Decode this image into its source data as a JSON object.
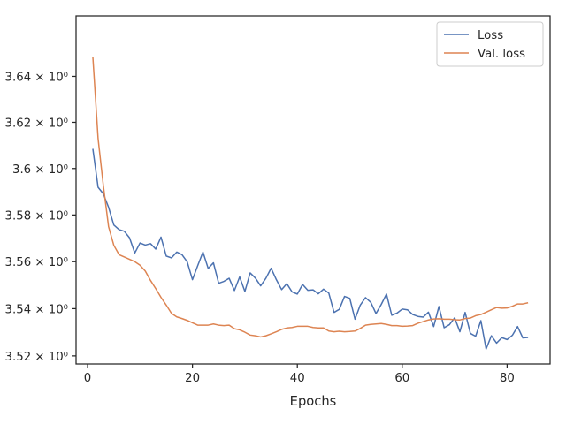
{
  "chart_data": {
    "type": "line",
    "title": "",
    "xlabel": "Epochs",
    "ylabel": "",
    "xlim": [
      -2.2,
      88.2
    ],
    "ylim": [
      3.5166,
      3.6665
    ],
    "x_ticks": [
      0,
      20,
      40,
      60,
      80
    ],
    "x_tick_labels": [
      "0",
      "20",
      "40",
      "60",
      "80"
    ],
    "y_ticks": [
      3.52,
      3.54,
      3.56,
      3.58,
      3.6,
      3.62,
      3.64
    ],
    "y_tick_labels": [
      "3.52 × 10⁰",
      "3.54 × 10⁰",
      "3.56 × 10⁰",
      "3.58 × 10⁰",
      "3.6 × 10⁰",
      "3.62 × 10⁰",
      "3.64 × 10⁰"
    ],
    "y_scale": "log",
    "grid": false,
    "legend_position": "top-right",
    "series": [
      {
        "name": "Loss",
        "color": "#4c72b0",
        "x": [
          1,
          2,
          3,
          4,
          5,
          6,
          7,
          8,
          9,
          10,
          11,
          12,
          13,
          14,
          15,
          16,
          17,
          18,
          19,
          20,
          21,
          22,
          23,
          24,
          25,
          26,
          27,
          28,
          29,
          30,
          31,
          32,
          33,
          34,
          35,
          36,
          37,
          38,
          39,
          40,
          41,
          42,
          43,
          44,
          45,
          46,
          47,
          48,
          49,
          50,
          51,
          52,
          53,
          54,
          55,
          56,
          57,
          58,
          59,
          60,
          61,
          62,
          63,
          64,
          65,
          66,
          67,
          68,
          69,
          70,
          71,
          72,
          73,
          74,
          75,
          76,
          77,
          78,
          79,
          80,
          81,
          82,
          83,
          84
        ],
        "values": [
          3.6085,
          3.5919,
          3.5891,
          3.5833,
          3.5757,
          3.5737,
          3.573,
          3.5702,
          3.5637,
          3.568,
          3.5671,
          3.5677,
          3.5654,
          3.5705,
          3.5624,
          3.5616,
          3.5641,
          3.563,
          3.5599,
          3.5523,
          3.5583,
          3.5641,
          3.5571,
          3.5595,
          3.5508,
          3.5516,
          3.5529,
          3.5477,
          3.5535,
          3.5473,
          3.5552,
          3.553,
          3.5497,
          3.5529,
          3.5572,
          3.5523,
          3.5481,
          3.5506,
          3.5471,
          3.5462,
          3.5503,
          3.5478,
          3.548,
          3.5463,
          3.5483,
          3.5466,
          3.5384,
          3.5397,
          3.5452,
          3.5444,
          3.5355,
          3.5415,
          3.5447,
          3.5427,
          3.5379,
          3.5418,
          3.5462,
          3.5372,
          3.5381,
          3.5398,
          3.5395,
          3.5375,
          3.5367,
          3.5364,
          3.5385,
          3.5324,
          3.5409,
          3.5319,
          3.5332,
          3.5361,
          3.5302,
          3.5384,
          3.5295,
          3.5283,
          3.5349,
          3.5229,
          3.5285,
          3.5254,
          3.5277,
          3.5269,
          3.5287,
          3.5324,
          3.5276,
          3.5278
        ]
      },
      {
        "name": "Val. loss",
        "color": "#dd8452",
        "x": [
          1,
          2,
          3,
          4,
          5,
          6,
          7,
          8,
          9,
          10,
          11,
          12,
          13,
          14,
          15,
          16,
          17,
          18,
          19,
          20,
          21,
          22,
          23,
          24,
          25,
          26,
          27,
          28,
          29,
          30,
          31,
          32,
          33,
          34,
          35,
          36,
          37,
          38,
          39,
          40,
          41,
          42,
          43,
          44,
          45,
          46,
          47,
          48,
          49,
          50,
          51,
          52,
          53,
          54,
          55,
          56,
          57,
          58,
          59,
          60,
          61,
          62,
          63,
          64,
          65,
          66,
          67,
          68,
          69,
          70,
          71,
          72,
          73,
          74,
          75,
          76,
          77,
          78,
          79,
          80,
          81,
          82,
          83,
          84
        ],
        "values": [
          3.6485,
          3.613,
          3.5927,
          3.575,
          3.567,
          3.563,
          3.562,
          3.561,
          3.56,
          3.5585,
          3.556,
          3.552,
          3.5485,
          3.5448,
          3.5415,
          3.538,
          3.5365,
          3.5358,
          3.535,
          3.534,
          3.533,
          3.533,
          3.533,
          3.5335,
          3.533,
          3.5328,
          3.533,
          3.5315,
          3.531,
          3.53,
          3.5288,
          3.5285,
          3.528,
          3.5285,
          3.5293,
          3.5302,
          3.5312,
          3.5318,
          3.532,
          3.5325,
          3.5325,
          3.5325,
          3.532,
          3.5318,
          3.5318,
          3.5305,
          3.5302,
          3.5304,
          3.5302,
          3.5303,
          3.5305,
          3.5316,
          3.533,
          3.5333,
          3.5335,
          3.5337,
          3.5333,
          3.5328,
          3.5328,
          3.5325,
          3.5326,
          3.5328,
          3.5338,
          3.5345,
          3.5352,
          3.5356,
          3.5357,
          3.5355,
          3.5355,
          3.5353,
          3.5352,
          3.5358,
          3.536,
          3.537,
          3.5375,
          3.5385,
          3.5395,
          3.5405,
          3.5402,
          3.5403,
          3.541,
          3.542,
          3.542,
          3.5425
        ]
      }
    ]
  }
}
